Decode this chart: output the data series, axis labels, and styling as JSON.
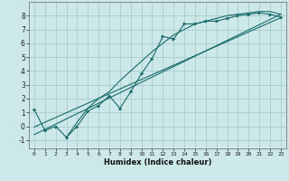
{
  "xlabel": "Humidex (Indice chaleur)",
  "ylabel": "",
  "bg_color": "#cce8e8",
  "grid_color": "#aacccc",
  "line_color": "#1a6b6b",
  "xlim": [
    -0.5,
    23.5
  ],
  "ylim": [
    -1.6,
    9.0
  ],
  "xticks": [
    0,
    1,
    2,
    3,
    4,
    5,
    6,
    7,
    8,
    9,
    10,
    11,
    12,
    13,
    14,
    15,
    16,
    17,
    18,
    19,
    20,
    21,
    22,
    23
  ],
  "yticks": [
    -1,
    0,
    1,
    2,
    3,
    4,
    5,
    6,
    7,
    8
  ],
  "line1_x": [
    0,
    1,
    2,
    3,
    4,
    5,
    6,
    7,
    8,
    9,
    10,
    11,
    12,
    13,
    14,
    15,
    16,
    17,
    18,
    19,
    20,
    21,
    22,
    23
  ],
  "line1_y": [
    1.2,
    -0.3,
    0.0,
    -0.8,
    0.0,
    1.1,
    1.5,
    2.2,
    1.3,
    2.5,
    3.8,
    4.9,
    6.5,
    6.3,
    7.4,
    7.4,
    7.6,
    7.6,
    7.8,
    8.0,
    8.1,
    8.2,
    8.1,
    7.9
  ],
  "line2_x": [
    3,
    4,
    5,
    6,
    7,
    8,
    9,
    10,
    11,
    12,
    13,
    14,
    15,
    16,
    17,
    18,
    19,
    20,
    21,
    22,
    23
  ],
  "line2_y": [
    -0.8,
    0.3,
    1.3,
    2.0,
    2.5,
    3.3,
    4.0,
    4.7,
    5.4,
    6.0,
    6.6,
    7.0,
    7.4,
    7.6,
    7.8,
    8.0,
    8.1,
    8.2,
    8.3,
    8.3,
    8.1
  ],
  "line3_x": [
    0,
    23
  ],
  "line3_y": [
    -0.05,
    7.85
  ],
  "line4_x": [
    0,
    23
  ],
  "line4_y": [
    -0.6,
    8.1
  ]
}
